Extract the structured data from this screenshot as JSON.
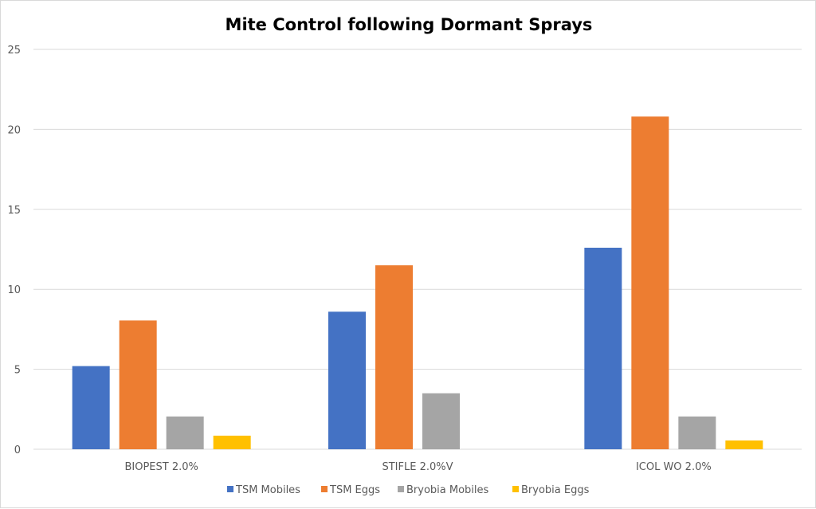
{
  "chart_data": {
    "type": "bar",
    "title": "Mite Control following Dormant Sprays",
    "categories": [
      "BIOPEST 2.0%",
      "STIFLE 2.0%V",
      "ICOL WO 2.0%"
    ],
    "series": [
      {
        "name": "TSM Mobiles",
        "color": "#4472c4",
        "values": [
          5.2,
          8.6,
          12.6
        ]
      },
      {
        "name": "TSM Eggs",
        "color": "#ed7d31",
        "values": [
          8.05,
          11.5,
          20.8
        ]
      },
      {
        "name": "Bryobia Mobiles",
        "color": "#a5a5a5",
        "values": [
          2.05,
          3.5,
          2.05
        ]
      },
      {
        "name": "Bryobia Eggs",
        "color": "#ffc000",
        "values": [
          0.85,
          0,
          0.55
        ]
      }
    ],
    "y_ticks": [
      "0",
      "5",
      "10",
      "15",
      "20",
      "25"
    ],
    "ylim": [
      0,
      25
    ],
    "xlabel": "",
    "ylabel": "",
    "grid": true,
    "legend_position": "bottom"
  }
}
